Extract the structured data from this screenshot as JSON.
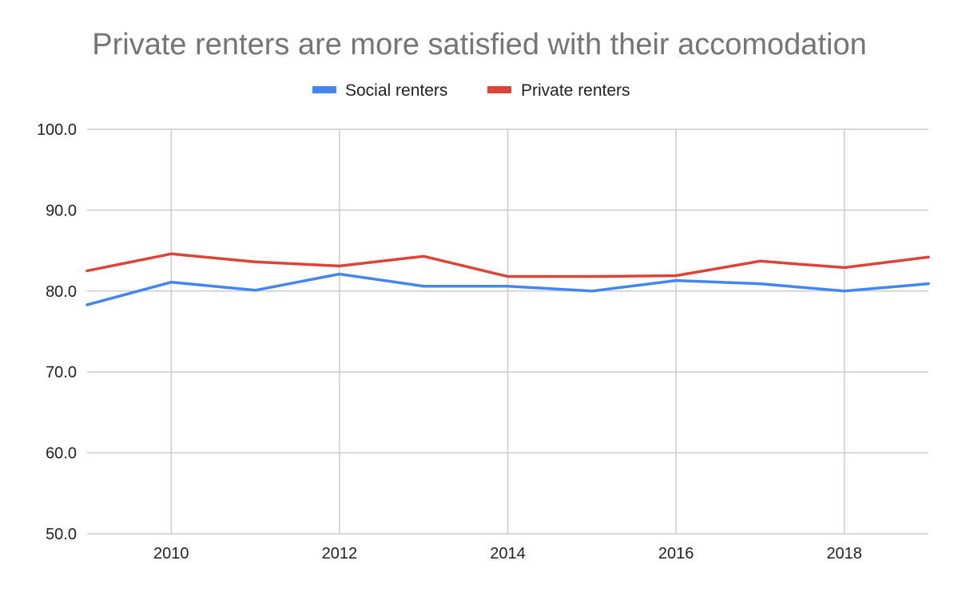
{
  "chart_data": {
    "type": "line",
    "title": "Private renters are more satisfied with their accomodation",
    "xlabel": "",
    "ylabel": "",
    "x": [
      2009,
      2010,
      2011,
      2012,
      2013,
      2014,
      2015,
      2016,
      2017,
      2018,
      2019
    ],
    "xlim": [
      2009,
      2019
    ],
    "ylim": [
      50,
      100
    ],
    "grid": true,
    "legend_position": "top-center",
    "x_ticks": [
      {
        "value": 2010,
        "label": "2010"
      },
      {
        "value": 2012,
        "label": "2012"
      },
      {
        "value": 2014,
        "label": "2014"
      },
      {
        "value": 2016,
        "label": "2016"
      },
      {
        "value": 2018,
        "label": "2018"
      }
    ],
    "y_ticks": [
      {
        "value": 100,
        "label": "100.0"
      },
      {
        "value": 90,
        "label": "90.0"
      },
      {
        "value": 80,
        "label": "80.0"
      },
      {
        "value": 70,
        "label": "70.0"
      },
      {
        "value": 60,
        "label": "60.0"
      },
      {
        "value": 50,
        "label": "50.0"
      }
    ],
    "series": [
      {
        "name": "Social renters",
        "color": "#4285f4",
        "values": [
          78.3,
          81.1,
          80.1,
          82.1,
          80.6,
          80.6,
          80.0,
          81.3,
          80.9,
          80.0,
          80.9
        ]
      },
      {
        "name": "Private renters",
        "color": "#db4437",
        "values": [
          82.5,
          84.6,
          83.6,
          83.1,
          84.3,
          81.8,
          81.8,
          81.9,
          83.7,
          82.9,
          84.2
        ]
      }
    ]
  }
}
